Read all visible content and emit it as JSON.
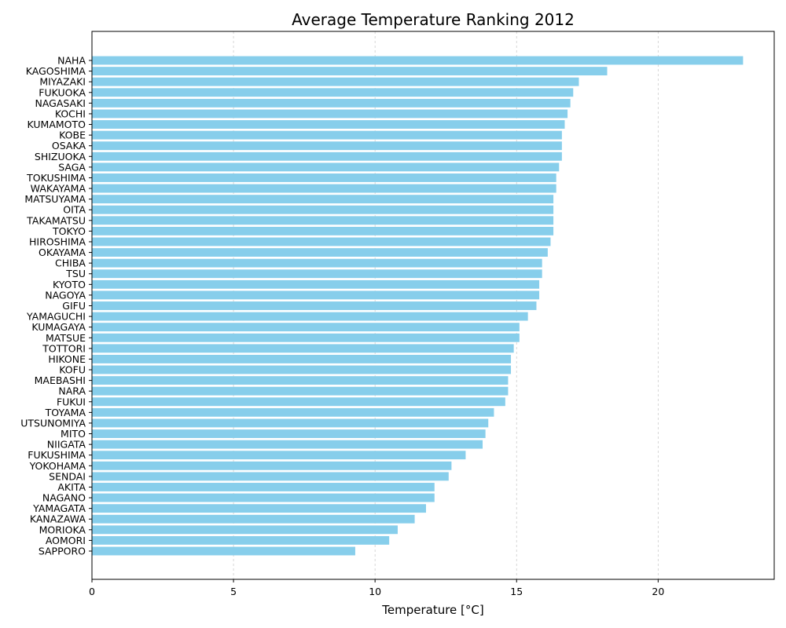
{
  "chart_data": {
    "type": "bar",
    "orientation": "horizontal",
    "title": "Average Temperature Ranking 2012",
    "xlabel": "Temperature [°C]",
    "ylabel": "",
    "xlim": [
      0,
      24.1
    ],
    "xticks": [
      0,
      5,
      10,
      15,
      20
    ],
    "grid": "x-dashed",
    "bar_color": "#87ceeb",
    "categories": [
      "NAHA",
      "KAGOSHIMA",
      "MIYAZAKI",
      "FUKUOKA",
      "NAGASAKI",
      "KOCHI",
      "KUMAMOTO",
      "KOBE",
      "OSAKA",
      "SHIZUOKA",
      "SAGA",
      "TOKUSHIMA",
      "WAKAYAMA",
      "MATSUYAMA",
      "OITA",
      "TAKAMATSU",
      "TOKYO",
      "HIROSHIMA",
      "OKAYAMA",
      "CHIBA",
      "TSU",
      "KYOTO",
      "NAGOYA",
      "GIFU",
      "YAMAGUCHI",
      "KUMAGAYA",
      "MATSUE",
      "TOTTORI",
      "HIKONE",
      "KOFU",
      "MAEBASHI",
      "NARA",
      "FUKUI",
      "TOYAMA",
      "UTSUNOMIYA",
      "MITO",
      "NIIGATA",
      "FUKUSHIMA",
      "YOKOHAMA",
      "SENDAI",
      "AKITA",
      "NAGANO",
      "YAMAGATA",
      "KANAZAWA",
      "MORIOKA",
      "AOMORI",
      "SAPPORO"
    ],
    "values": [
      23.0,
      18.2,
      17.2,
      17.0,
      16.9,
      16.8,
      16.7,
      16.6,
      16.6,
      16.6,
      16.5,
      16.4,
      16.4,
      16.3,
      16.3,
      16.3,
      16.3,
      16.2,
      16.1,
      15.9,
      15.9,
      15.8,
      15.8,
      15.7,
      15.4,
      15.1,
      15.1,
      14.9,
      14.8,
      14.8,
      14.7,
      14.7,
      14.6,
      14.2,
      14.0,
      13.9,
      13.8,
      13.2,
      12.7,
      12.6,
      12.1,
      12.1,
      11.8,
      11.4,
      10.8,
      10.5,
      9.3
    ]
  }
}
